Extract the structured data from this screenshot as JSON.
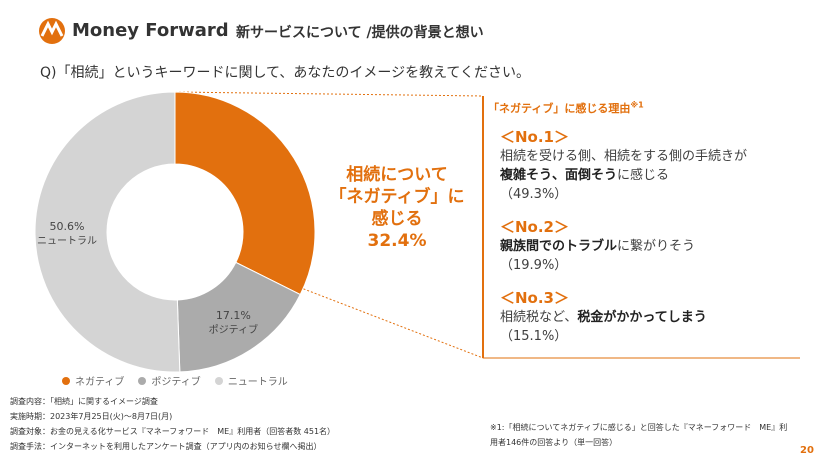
{
  "header": {
    "logo": "Money Forward",
    "title": "新サービスについて /提供の背景と想い"
  },
  "question": "Q)「相続」というキーワードに関して、あなたのイメージを教えてください。",
  "chart_data": {
    "type": "donut",
    "categories": [
      "ネガティブ",
      "ポジティブ",
      "ニュートラル"
    ],
    "values": [
      32.4,
      17.1,
      50.6
    ],
    "value_labels": [
      "32.4%",
      "17.1%",
      "50.6%"
    ],
    "colors": [
      "#e2700e",
      "#ababab",
      "#d4d4d4"
    ],
    "annotation": [
      "相続について",
      "「ネガティブ」に",
      "感じる"
    ]
  },
  "reasons": {
    "title": "「ネガティブ」に感じる理由",
    "title_note": "※1",
    "items": [
      {
        "rank": "＜No.1＞",
        "lines": [
          [
            {
              "text": "相続を受ける側、相続をする側の手続きが",
              "bold": false
            }
          ],
          [
            {
              "text": "複雑そう、面倒そう",
              "bold": true
            },
            {
              "text": "に感じる",
              "bold": false
            }
          ]
        ],
        "share": "（49.3%）"
      },
      {
        "rank": "＜No.2＞",
        "lines": [
          [
            {
              "text": "親族間でのトラブル",
              "bold": true
            },
            {
              "text": "に繋がりそう",
              "bold": false
            }
          ]
        ],
        "share": "（19.9%）"
      },
      {
        "rank": "＜No.3＞",
        "lines": [
          [
            {
              "text": "相続税など、",
              "bold": false
            },
            {
              "text": "税金がかかってしまう",
              "bold": true
            }
          ]
        ],
        "share": "（15.1%）"
      }
    ]
  },
  "survey": [
    "調査内容：「相続」に関するイメージ調査",
    "実施時期：2023年7月25日(火)～8月7日(月)",
    "調査対象：お金の見える化サービス『マネーフォワード　ME』利用者（回答者数 451名）",
    "調査手法：インターネットを利用したアンケート調査（アプリ内のお知らせ欄へ掲出）"
  ],
  "footnote": [
    "※1:「相続についてネガティブに感じる」と回答した『マネーフォワード　ME』利",
    "用者146件の回答より（単一回答）"
  ],
  "page": "20"
}
